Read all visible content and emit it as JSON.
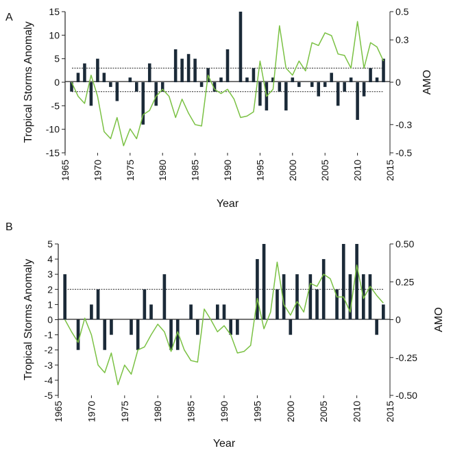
{
  "colors": {
    "bar": "#1b2a38",
    "line": "#7ac143",
    "axis": "#222222",
    "threshold": "#222222"
  },
  "chart_data": [
    {
      "type": "bar",
      "panel_label": "A",
      "xlabel": "Year",
      "ylabel": "Tropical Storms Anomaly",
      "y2label": "AMO",
      "xlim": [
        1965,
        2015
      ],
      "ylim": [
        -15,
        15
      ],
      "y2lim": [
        -0.5,
        0.5
      ],
      "xticks": [
        "1965",
        "1970",
        "1975",
        "1980",
        "1985",
        "1990",
        "1995",
        "2000",
        "2005",
        "2010",
        "2015"
      ],
      "yticks": [
        "15",
        "10",
        "5",
        "0",
        "-5",
        "-10",
        "-15"
      ],
      "y2ticks": [
        "0.5",
        "0.3",
        "0",
        "-0.3",
        "-0.5"
      ],
      "thresholds": [
        3,
        -2
      ],
      "series": [
        {
          "kind": "bar",
          "axis": "left",
          "x": [
            1966,
            1967,
            1968,
            1969,
            1970,
            1971,
            1972,
            1973,
            1974,
            1975,
            1976,
            1977,
            1978,
            1979,
            1980,
            1981,
            1982,
            1983,
            1984,
            1985,
            1986,
            1987,
            1988,
            1989,
            1990,
            1991,
            1992,
            1993,
            1994,
            1995,
            1996,
            1997,
            1998,
            1999,
            2000,
            2001,
            2002,
            2003,
            2004,
            2005,
            2006,
            2007,
            2008,
            2009,
            2010,
            2011,
            2012,
            2013,
            2014
          ],
          "values": [
            -2,
            2,
            4,
            -5,
            5,
            2,
            -1,
            -4,
            0,
            1,
            -2,
            -9,
            4,
            -5,
            -2,
            0,
            7,
            5,
            6,
            5,
            -1,
            3,
            -2,
            1,
            7,
            0,
            15,
            1,
            3,
            -5,
            -6,
            1,
            -2,
            -6,
            1,
            -1,
            0,
            -1,
            -3,
            -1,
            2,
            -5,
            -2,
            1,
            -8,
            -3,
            3,
            1,
            5
          ]
        },
        {
          "kind": "line",
          "axis": "right",
          "x": [
            1966,
            1967,
            1968,
            1969,
            1970,
            1971,
            1972,
            1973,
            1974,
            1975,
            1976,
            1977,
            1978,
            1979,
            1980,
            1981,
            1982,
            1983,
            1984,
            1985,
            1986,
            1987,
            1988,
            1989,
            1990,
            1991,
            1992,
            1993,
            1994,
            1995,
            1996,
            1997,
            1998,
            1999,
            2000,
            2001,
            2002,
            2003,
            2004,
            2005,
            2006,
            2007,
            2008,
            2009,
            2010,
            2011,
            2012,
            2013,
            2014
          ],
          "values": [
            0.0,
            -0.1,
            -0.15,
            0.05,
            -0.1,
            -0.35,
            -0.4,
            -0.25,
            -0.45,
            -0.33,
            -0.4,
            -0.23,
            -0.2,
            -0.1,
            -0.05,
            -0.1,
            -0.25,
            -0.12,
            -0.22,
            -0.3,
            -0.31,
            0.05,
            -0.05,
            -0.08,
            -0.05,
            -0.12,
            -0.25,
            -0.24,
            -0.21,
            0.15,
            -0.1,
            -0.05,
            0.4,
            0.1,
            0.05,
            0.15,
            0.08,
            0.28,
            0.26,
            0.35,
            0.33,
            0.2,
            0.19,
            0.1,
            0.43,
            0.1,
            0.28,
            0.25,
            0.15
          ]
        }
      ]
    },
    {
      "type": "bar",
      "panel_label": "B",
      "xlabel": "Year",
      "ylabel": "Tropical Storms Anomaly",
      "y2label": "AMO",
      "xlim": [
        1965,
        2015
      ],
      "ylim": [
        -5,
        5
      ],
      "y2lim": [
        -0.5,
        0.5
      ],
      "xticks": [
        "1965",
        "1970",
        "1975",
        "1980",
        "1985",
        "1990",
        "1995",
        "2000",
        "2005",
        "2010",
        "2015"
      ],
      "yticks": [
        "5",
        "4",
        "3",
        "2",
        "1",
        "0",
        "-1",
        "-2",
        "-3",
        "-4",
        "-5"
      ],
      "y2ticks": [
        "0.50",
        "0.25",
        "0",
        "-0.25",
        "-0.50"
      ],
      "thresholds": [
        2
      ],
      "series": [
        {
          "kind": "bar",
          "axis": "left",
          "x": [
            1966,
            1967,
            1968,
            1969,
            1970,
            1971,
            1972,
            1973,
            1974,
            1975,
            1976,
            1977,
            1978,
            1979,
            1980,
            1981,
            1982,
            1983,
            1984,
            1985,
            1986,
            1987,
            1988,
            1989,
            1990,
            1991,
            1992,
            1993,
            1994,
            1995,
            1996,
            1997,
            1998,
            1999,
            2000,
            2001,
            2002,
            2003,
            2004,
            2005,
            2006,
            2007,
            2008,
            2009,
            2010,
            2011,
            2012,
            2013,
            2014
          ],
          "values": [
            3,
            0,
            -2,
            0,
            1,
            2,
            -2,
            -1,
            0,
            0,
            -1,
            -2,
            2,
            1,
            0,
            3,
            -2,
            -2,
            0,
            1,
            -1,
            0,
            0,
            1,
            1,
            -1,
            -1,
            0,
            0,
            4,
            5,
            0,
            2,
            3,
            -1,
            3,
            0,
            3,
            2,
            4,
            0,
            2,
            5,
            3,
            5,
            3,
            3,
            -1,
            1
          ]
        },
        {
          "kind": "line",
          "axis": "right",
          "x": [
            1966,
            1967,
            1968,
            1969,
            1970,
            1971,
            1972,
            1973,
            1974,
            1975,
            1976,
            1977,
            1978,
            1979,
            1980,
            1981,
            1982,
            1983,
            1984,
            1985,
            1986,
            1987,
            1988,
            1989,
            1990,
            1991,
            1992,
            1993,
            1994,
            1995,
            1996,
            1997,
            1998,
            1999,
            2000,
            2001,
            2002,
            2003,
            2004,
            2005,
            2006,
            2007,
            2008,
            2009,
            2010,
            2011,
            2012,
            2013,
            2014
          ],
          "values": [
            0.0,
            -0.08,
            -0.15,
            0.01,
            -0.1,
            -0.3,
            -0.35,
            -0.22,
            -0.43,
            -0.3,
            -0.36,
            -0.2,
            -0.18,
            -0.1,
            -0.03,
            -0.08,
            -0.21,
            -0.08,
            -0.2,
            -0.27,
            -0.28,
            0.07,
            0.0,
            -0.08,
            -0.04,
            -0.1,
            -0.22,
            -0.21,
            -0.17,
            0.14,
            -0.06,
            0.05,
            0.38,
            0.1,
            0.03,
            0.12,
            0.05,
            0.24,
            0.22,
            0.3,
            0.27,
            0.15,
            0.15,
            0.05,
            0.36,
            0.14,
            0.22,
            0.16,
            0.11
          ]
        }
      ]
    }
  ]
}
